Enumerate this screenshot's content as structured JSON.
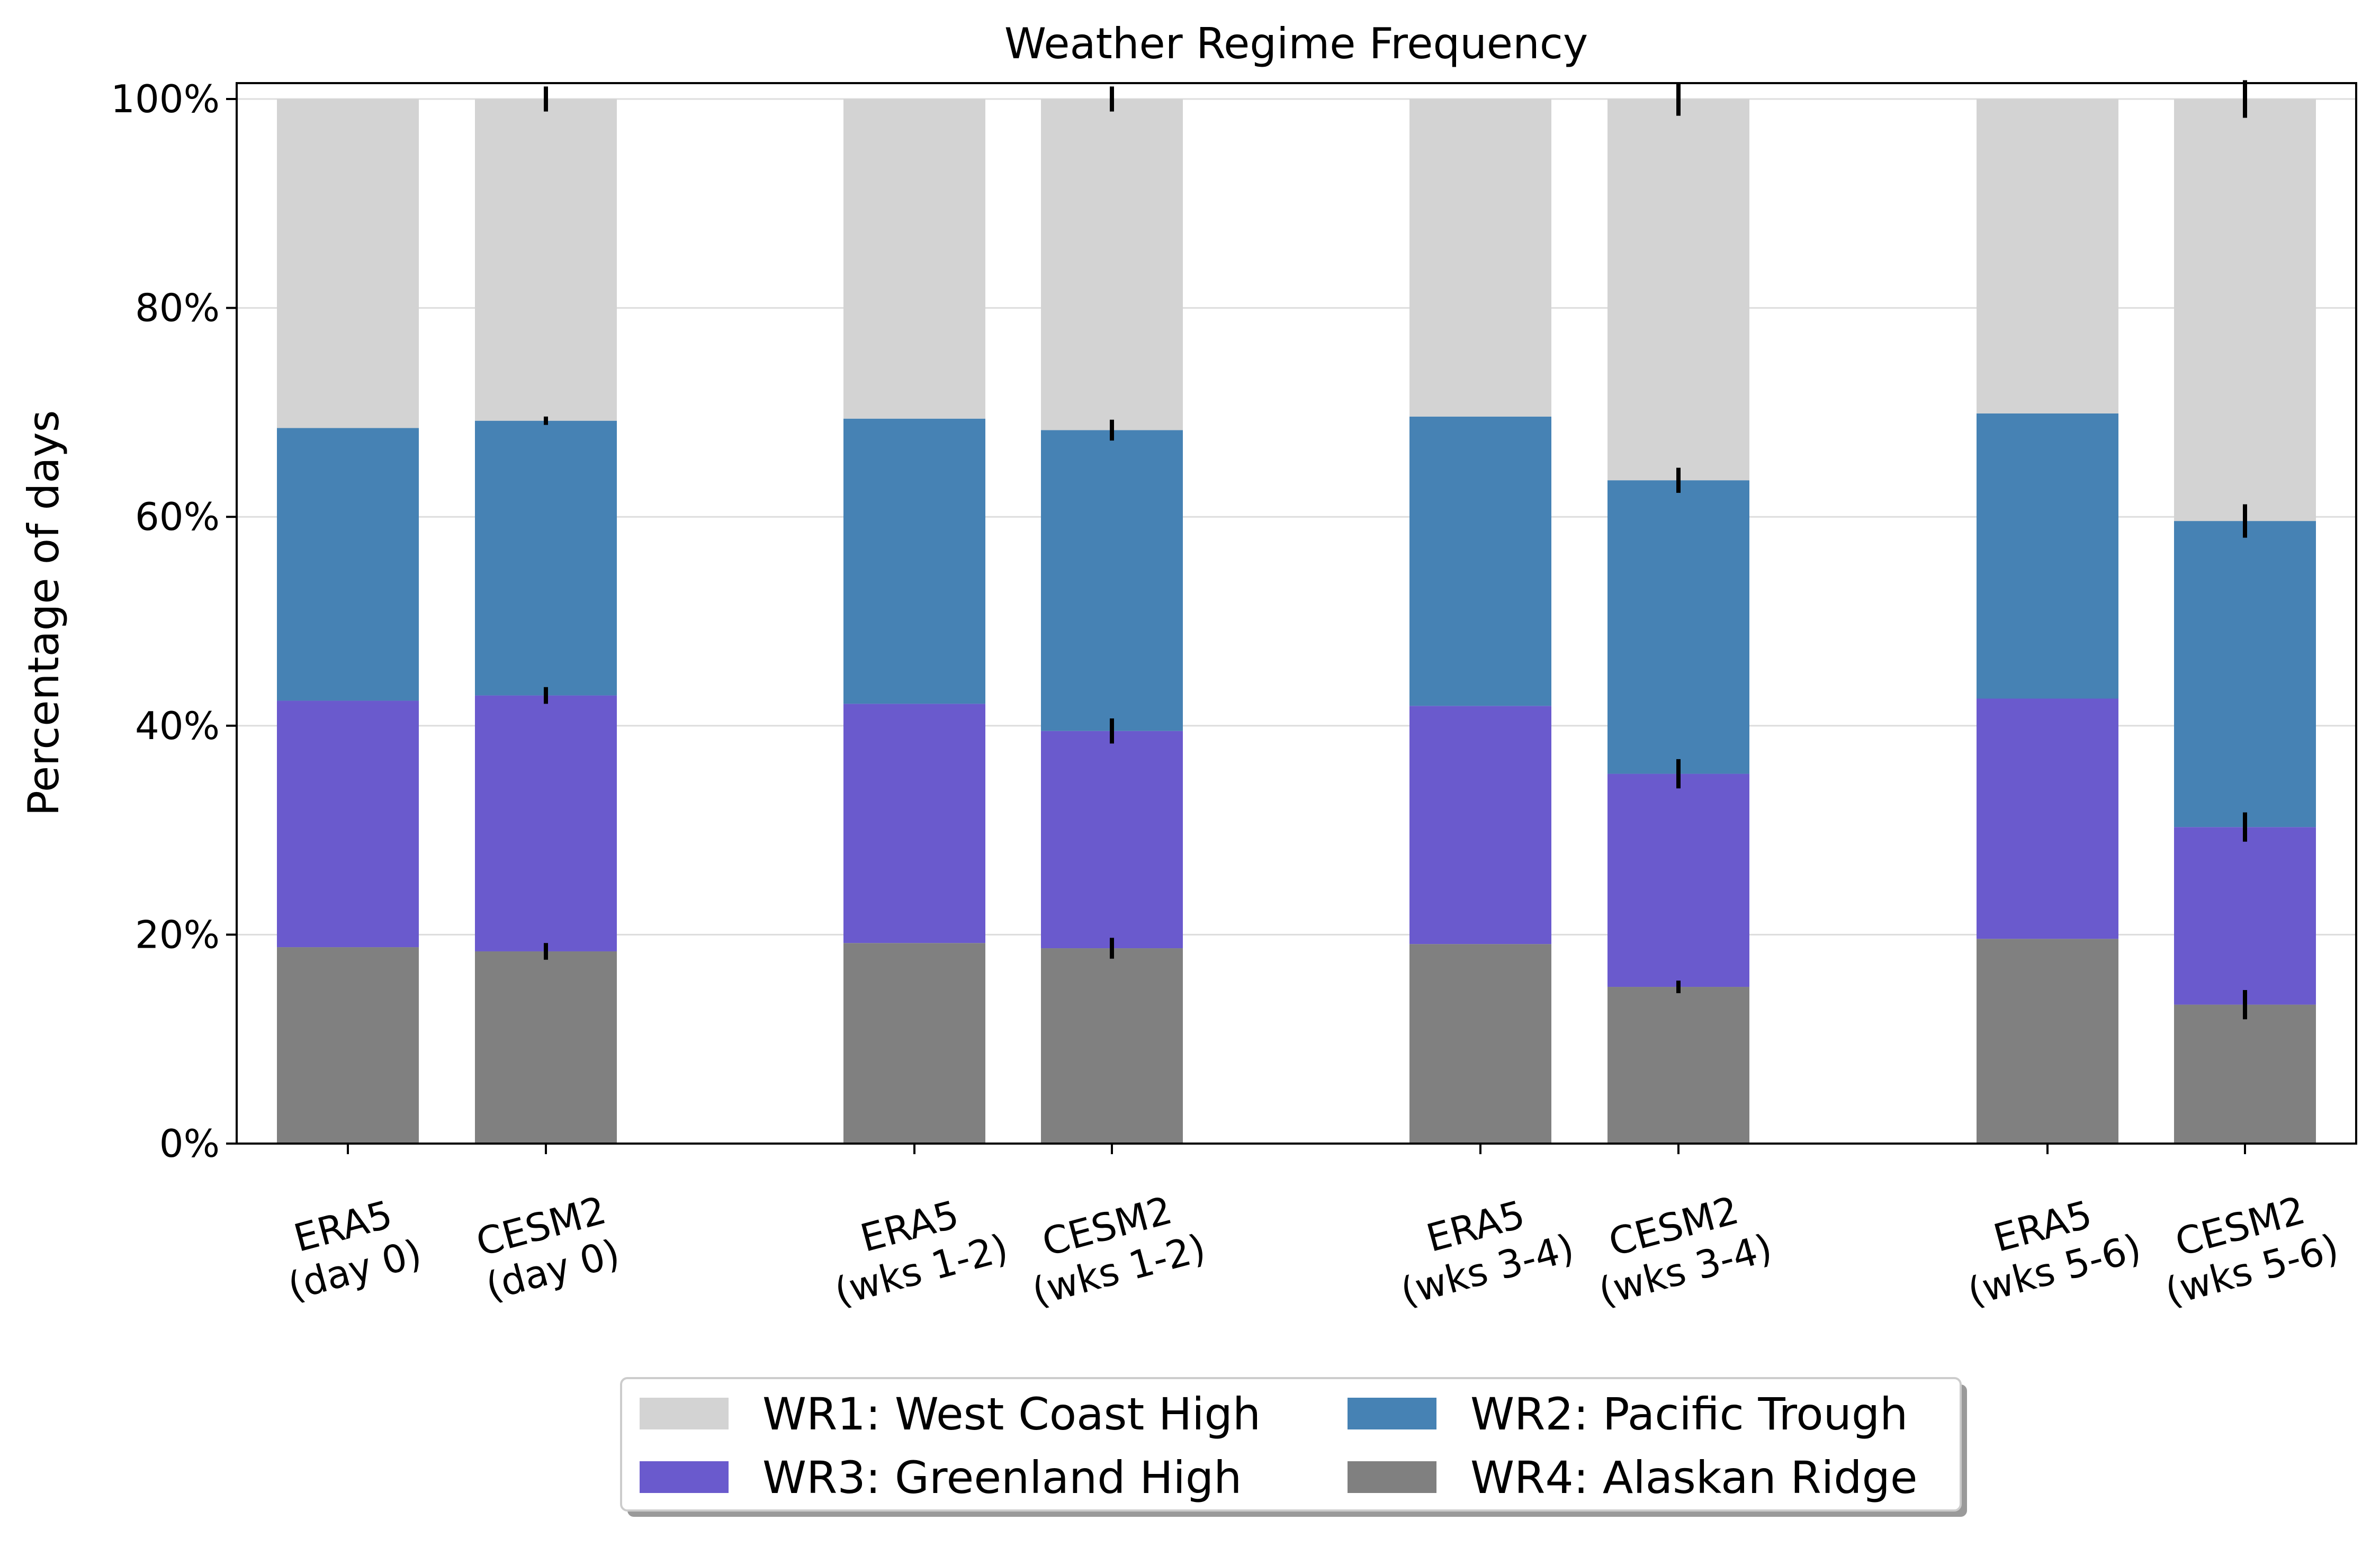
{
  "chart_data": {
    "type": "bar",
    "stacked": true,
    "title": "Weather Regime Frequency",
    "xlabel": "",
    "ylabel": "Percentage of days",
    "ylim": [
      0,
      100
    ],
    "yticks": [
      0,
      20,
      40,
      60,
      80,
      100
    ],
    "ytick_labels": [
      "0%",
      "20%",
      "40%",
      "60%",
      "80%",
      "100%"
    ],
    "grid": "horizontal",
    "legend_position": "bottom-center",
    "groups": [
      {
        "label": "day 0"
      },
      {
        "label": "wks 1-2"
      },
      {
        "label": "wks 3-4"
      },
      {
        "label": "wks 5-6"
      }
    ],
    "categories": [
      [
        "ERA5",
        "(day 0)"
      ],
      [
        "CESM2",
        "(day 0)"
      ],
      [
        "ERA5",
        "(wks 1-2)"
      ],
      [
        "CESM2",
        "(wks 1-2)"
      ],
      [
        "ERA5",
        "(wks 3-4)"
      ],
      [
        "CESM2",
        "(wks 3-4)"
      ],
      [
        "ERA5",
        "(wks 5-6)"
      ],
      [
        "CESM2",
        "(wks 5-6)"
      ]
    ],
    "series": [
      {
        "name": "WR4: Alaskan Ridge",
        "color": "#808080",
        "values": [
          18.8,
          18.4,
          19.2,
          18.7,
          19.1,
          15.0,
          19.6,
          13.3
        ]
      },
      {
        "name": "WR3: Greenland High",
        "color": "#6a5acd",
        "values": [
          23.6,
          24.5,
          22.9,
          20.8,
          22.8,
          20.4,
          23.0,
          17.0
        ]
      },
      {
        "name": "WR2: Pacific Trough",
        "color": "#4682b4",
        "values": [
          26.1,
          26.3,
          27.3,
          28.8,
          27.7,
          28.1,
          27.3,
          29.3
        ]
      },
      {
        "name": "WR1: West Coast High",
        "color": "#d3d3d3",
        "values": [
          31.5,
          30.8,
          30.6,
          31.7,
          30.4,
          36.5,
          30.1,
          40.4
        ]
      }
    ],
    "error_bars": [
      {
        "category_index": 1,
        "boundaries": [
          [
            18.4,
            0.8
          ],
          [
            42.9,
            0.8
          ],
          [
            69.2,
            0.4
          ],
          [
            100,
            1.2
          ]
        ]
      },
      {
        "category_index": 3,
        "boundaries": [
          [
            18.7,
            1.0
          ],
          [
            39.5,
            1.2
          ],
          [
            68.3,
            1.0
          ],
          [
            100,
            1.2
          ]
        ]
      },
      {
        "category_index": 5,
        "boundaries": [
          [
            15.0,
            0.6
          ],
          [
            35.4,
            1.4
          ],
          [
            63.5,
            1.2
          ],
          [
            100,
            1.6
          ]
        ]
      },
      {
        "category_index": 7,
        "boundaries": [
          [
            13.3,
            1.4
          ],
          [
            30.3,
            1.4
          ],
          [
            59.6,
            1.6
          ],
          [
            100,
            1.8
          ]
        ]
      }
    ],
    "legend": [
      {
        "name": "WR1: West Coast High",
        "color": "#d3d3d3"
      },
      {
        "name": "WR3: Greenland High",
        "color": "#6a5acd"
      },
      {
        "name": "WR2: Pacific Trough",
        "color": "#4682b4"
      },
      {
        "name": "WR4: Alaskan Ridge",
        "color": "#808080"
      }
    ]
  }
}
